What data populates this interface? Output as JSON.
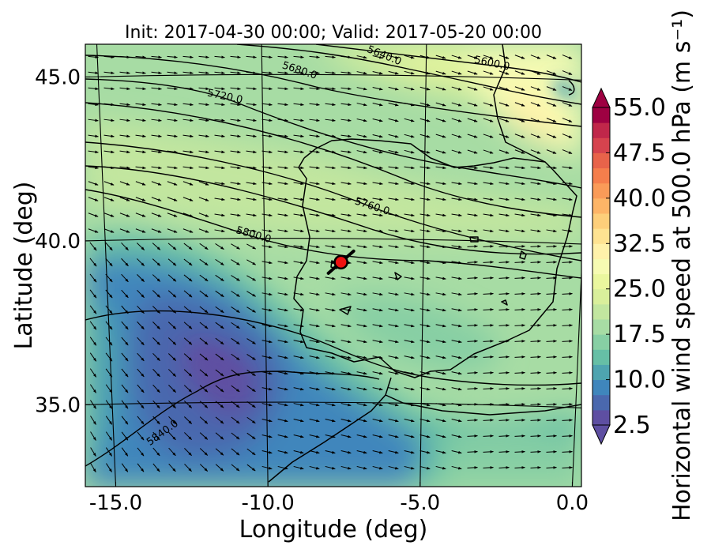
{
  "chart_data": {
    "type": "contourf-map",
    "title": "Init: 2017-04-30 00:00; Valid: 2017-05-20 00:00",
    "xlabel": "Longitude (deg)",
    "ylabel": "Latitude (deg)",
    "xlim": [
      -16,
      0.3
    ],
    "ylim": [
      32.5,
      46
    ],
    "xticks": [
      "-15.0",
      "-10.0",
      "-5.0",
      "0.0"
    ],
    "yticks": [
      "35.0",
      "40.0",
      "45.0"
    ],
    "xtick_values": [
      -15,
      -10,
      -5,
      0
    ],
    "ytick_values": [
      35,
      40,
      45
    ],
    "colorbar": {
      "label": "Horizontal wind speed at 500.0 hPa (m s⁻¹)",
      "min": 2.5,
      "max": 55.0,
      "step": 2.5,
      "tick_labels": [
        "2.5",
        "10.0",
        "17.5",
        "25.0",
        "32.5",
        "40.0",
        "47.5",
        "55.0"
      ],
      "tick_values": [
        2.5,
        10,
        17.5,
        25,
        32.5,
        40,
        47.5,
        55
      ],
      "colormap": "Spectral_r",
      "colors": [
        "#5e4fa2",
        "#4a68ae",
        "#3f86bc",
        "#4ea4b0",
        "#66bfa6",
        "#87cfa4",
        "#a7dca4",
        "#c2e69f",
        "#d9ef9b",
        "#eaf79e",
        "#f6fbb2",
        "#fff2aa",
        "#fee391",
        "#fdcf7a",
        "#fdb567",
        "#fa9b58",
        "#f57e4c",
        "#e8634a",
        "#d6434e",
        "#c0274a",
        "#9e0142"
      ]
    },
    "contours": {
      "levels": [
        5600.0,
        5640.0,
        5680.0,
        5720.0,
        5760.0,
        5800.0,
        5840.0
      ],
      "labels": [
        "5600.0",
        "5640.0",
        "5680.0",
        "5720.0",
        "5760.0",
        "5800.0",
        "5840.0"
      ]
    },
    "marker": {
      "lon": -7.6,
      "lat": 39.35,
      "color": "#ee1111"
    },
    "wind_field": "westerly flow, arrows pointing mostly east, turning southward in south-west"
  }
}
